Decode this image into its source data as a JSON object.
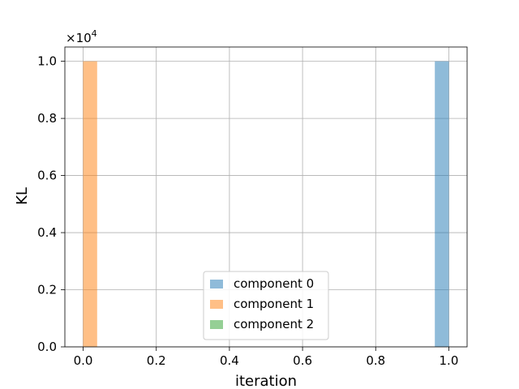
{
  "chart_data": {
    "type": "bar",
    "title": "",
    "xlabel": "iteration",
    "ylabel": "KL",
    "y_scale_label": "×10",
    "y_scale_exponent": "4",
    "xlim": [
      -0.05,
      1.05
    ],
    "ylim": [
      0,
      10500
    ],
    "x_ticks": [
      0.0,
      0.2,
      0.4,
      0.6,
      0.8,
      1.0
    ],
    "x_tick_labels": [
      "0.0",
      "0.2",
      "0.4",
      "0.6",
      "0.8",
      "1.0"
    ],
    "y_ticks": [
      0,
      2000,
      4000,
      6000,
      8000,
      10000
    ],
    "y_tick_labels": [
      "0.0",
      "0.2",
      "0.4",
      "0.6",
      "0.8",
      "1.0"
    ],
    "bar_width": 0.0385,
    "grid": true,
    "legend_position": "bottom-center",
    "series": [
      {
        "name": "component 0",
        "color": "#1f77b4",
        "opacity": 0.5,
        "bars": [
          {
            "x": 0.981,
            "value": 10000
          }
        ]
      },
      {
        "name": "component 1",
        "color": "#ff7f0e",
        "opacity": 0.5,
        "bars": [
          {
            "x": 0.019,
            "value": 10000
          }
        ]
      },
      {
        "name": "component 2",
        "color": "#2ca02c",
        "opacity": 0.5,
        "bars": []
      }
    ]
  }
}
